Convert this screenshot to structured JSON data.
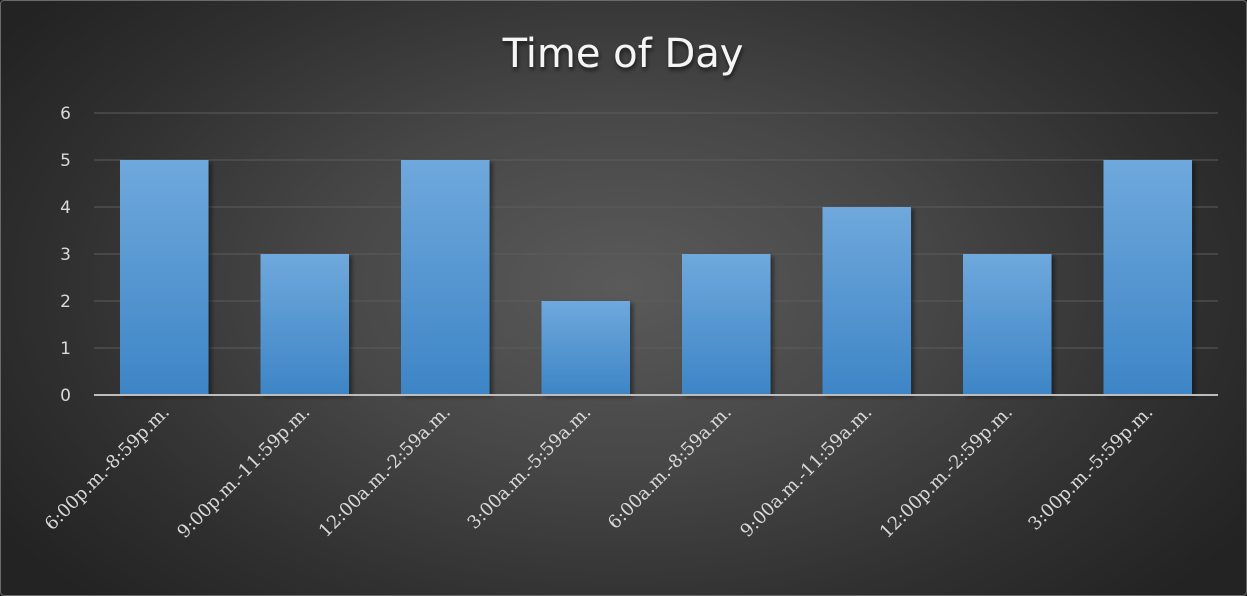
{
  "chart_data": {
    "type": "bar",
    "title": "Time of Day",
    "xlabel": "",
    "ylabel": "",
    "categories": [
      "6:00p.m.-8:59p.m.",
      "9:00p.m.-11:59p.m.",
      "12:00a.m.-2:59a.m.",
      "3:00a.m.-5:59a.m.",
      "6:00a.m.-8:59a.m.",
      "9:00a.m.-11:59a.m.",
      "12:00p.m.-2:59p.m.",
      "3:00p.m.-5:59p.m."
    ],
    "values": [
      5,
      3,
      5,
      2,
      3,
      4,
      3,
      5
    ],
    "ylim": [
      0,
      6
    ],
    "yticks": [
      "0",
      "1",
      "2",
      "3",
      "4",
      "5",
      "6"
    ],
    "grid": true,
    "legend": "none",
    "colors": {
      "bar_top": "#6fa8dc",
      "bar_bottom": "#3d85c6",
      "background_center": "#5a5a5a",
      "background_edge": "#232323",
      "title": "#f5f5f5",
      "tick_label": "#d9d9d9"
    }
  }
}
